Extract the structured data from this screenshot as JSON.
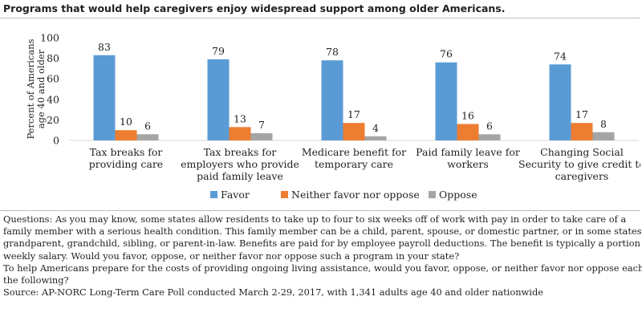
{
  "title": "Programs that would help caregivers enjoy widespread support among older Americans.",
  "chart_data": {
    "type": "bar",
    "ylabel_lines": [
      "Percent of Americans",
      "age 40 and older"
    ],
    "ylim": [
      0,
      100
    ],
    "yticks": [
      0,
      20,
      40,
      60,
      80,
      100
    ],
    "grid": false,
    "legend_position": "bottom",
    "categories": [
      [
        "Tax breaks for",
        "providing care"
      ],
      [
        "Tax breaks for",
        "employers who provide",
        "paid family leave"
      ],
      [
        "Medicare benefit for",
        "temporary care"
      ],
      [
        "Paid family leave for",
        "workers"
      ],
      [
        "Changing Social",
        "Security to give credit to",
        "caregivers"
      ]
    ],
    "series": [
      {
        "name": "Favor",
        "color": "#5b9bd5",
        "values": [
          83,
          79,
          78,
          76,
          74
        ]
      },
      {
        "name": "Neither favor nor oppose",
        "color": "#ed7d31",
        "values": [
          10,
          13,
          17,
          16,
          17
        ]
      },
      {
        "name": "Oppose",
        "color": "#a5a5a5",
        "values": [
          6,
          7,
          4,
          6,
          8
        ]
      }
    ]
  },
  "notes": [
    "Questions: As you may know, some states allow residents to take up to four to six weeks off of work with pay in order to take care of a",
    "family member with a serious health condition. This family member can be a child, parent, spouse, or domestic partner, or in some states a",
    "grandparent, grandchild, sibling, or parent-in-law. Benefits are paid for by employee payroll deductions. The benefit is typically a portion of",
    "weekly salary. Would you favor, oppose, or neither favor nor oppose such a program in your state?",
    "To help Americans prepare for the costs of providing ongoing living assistance, would you favor, oppose, or neither favor nor oppose each of",
    "the following?",
    "Source: AP-NORC Long-Term Care Poll conducted March 2-29, 2017, with 1,341 adults age 40 and older nationwide"
  ]
}
